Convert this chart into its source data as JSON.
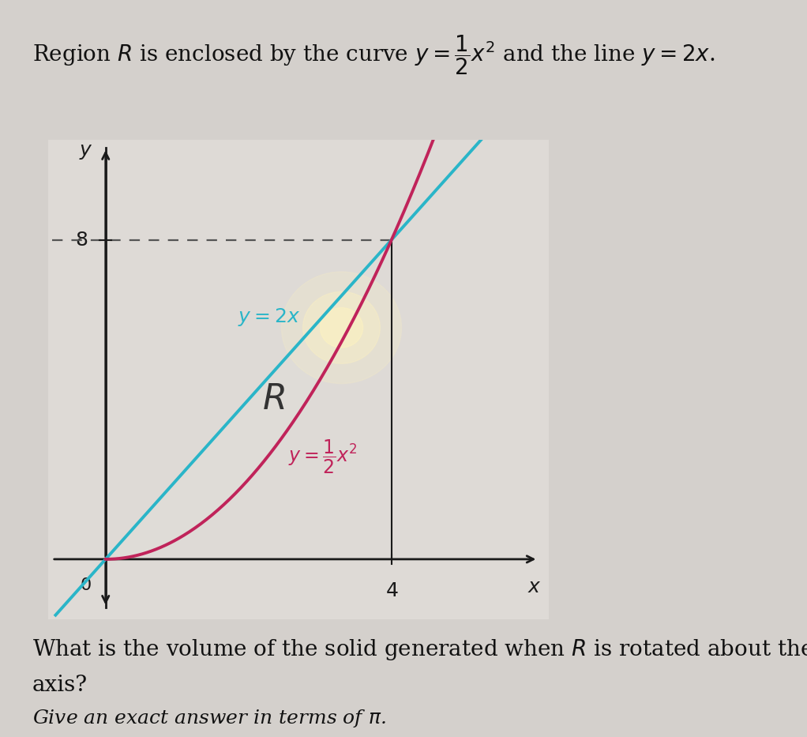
{
  "bg_color": "#d4d0cc",
  "plot_bg_color": "#dedad6",
  "line_color": "#2ab5c8",
  "curve_color": "#c0235a",
  "fill_color": "#e0ddd8",
  "fill_alpha": 0.95,
  "glow_color": "#fff4c0",
  "glow_alpha": 0.85,
  "axis_color": "#1a1a1a",
  "dashed_color": "#555555",
  "label_2x_color": "#2ab5c8",
  "label_curve_color": "#c0235a",
  "label_R_color": "#333333",
  "x_intersection": 4,
  "y_intersection": 8,
  "xlim": [
    -0.8,
    6.2
  ],
  "ylim": [
    -1.5,
    10.5
  ],
  "title_fontsize": 20,
  "axis_fontsize": 16,
  "tick_fontsize": 18,
  "label_fontsize": 18,
  "R_fontsize": 32,
  "question_fontsize": 20,
  "italic_fontsize": 18
}
